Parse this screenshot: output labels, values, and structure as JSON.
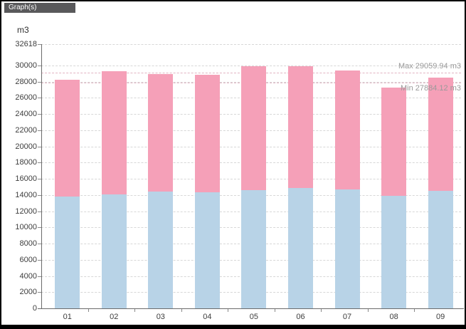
{
  "window": {
    "title": "Graph(s)"
  },
  "axis_unit": "m3",
  "colors": {
    "header_bg": "#59595b",
    "header_text": "#ffffff",
    "bar_blue": "#b8d3e7",
    "bar_pink": "#f5a0b8",
    "gridline": "#d7d7d7",
    "refline": "#e2b4c2",
    "axis": "#6b6b6b",
    "tick_text": "#3d3d3d",
    "annotation_text": "#9a9a9a"
  },
  "chart_data": {
    "type": "bar",
    "stacked": true,
    "title": "Graph(s)",
    "ylabel": "m3",
    "xlabel": "",
    "categories": [
      "01",
      "02",
      "03",
      "04",
      "05",
      "06",
      "07",
      "08",
      "09"
    ],
    "series": [
      {
        "color": "#b8d3e7",
        "position": "bottom",
        "values": [
          13800,
          14100,
          14400,
          14350,
          14600,
          14850,
          14700,
          13850,
          14500
        ]
      },
      {
        "color": "#f5a0b8",
        "position": "top",
        "values": [
          14400,
          15150,
          14550,
          14450,
          15250,
          15050,
          14650,
          13400,
          14000
        ]
      }
    ],
    "totals": [
      28200,
      29250,
      28950,
      28800,
      29850,
      29900,
      29350,
      27250,
      28500
    ],
    "ylim": [
      0,
      32618
    ],
    "yticks": [
      0,
      2000,
      4000,
      6000,
      8000,
      10000,
      12000,
      14000,
      16000,
      18000,
      20000,
      22000,
      24000,
      26000,
      28000,
      30000,
      32618
    ],
    "grid": "horizontal-dashed",
    "legend": "none",
    "annotations": [
      {
        "label": "Max 29059.94 m3",
        "value": 29059.94,
        "label_side": "above"
      },
      {
        "label": "Min 27884.12 m3",
        "value": 27884.12,
        "label_side": "below"
      }
    ]
  }
}
